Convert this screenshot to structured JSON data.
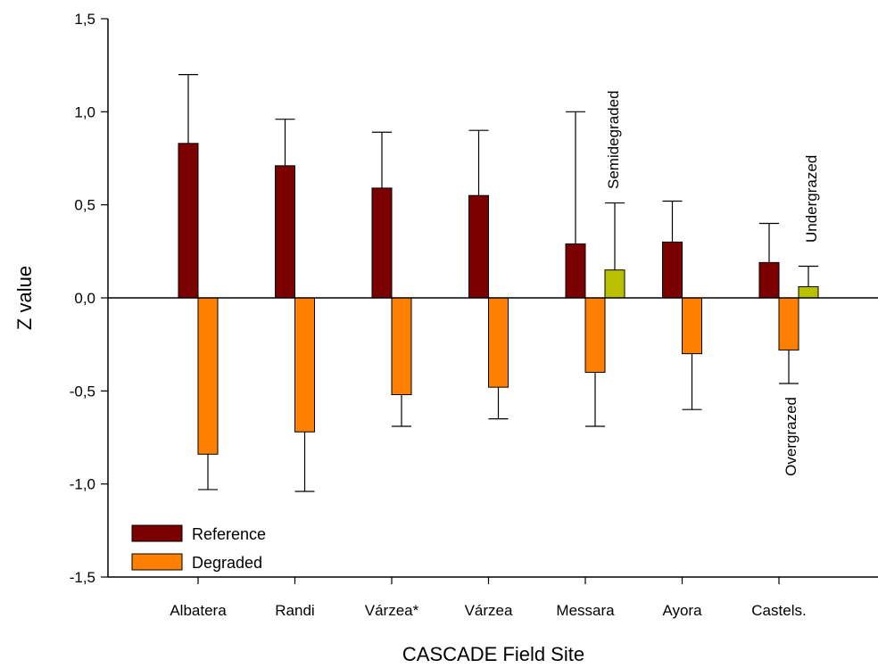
{
  "chart_data": {
    "type": "bar",
    "xlabel": "CASCADE Field Site",
    "ylabel": "Z value",
    "ylim": [
      -1.5,
      1.5
    ],
    "yticks": [
      "-1,5",
      "-1,0",
      "-0,5",
      "0,0",
      "0,5",
      "1,0",
      "1,5"
    ],
    "ytick_values": [
      -1.5,
      -1.0,
      -0.5,
      0.0,
      0.5,
      1.0,
      1.5
    ],
    "categories": [
      "Albatera",
      "Randi",
      "Várzea*",
      "Várzea",
      "Messara",
      "Ayora",
      "Castels."
    ],
    "series": [
      {
        "name": "Reference",
        "color": "#7b0000",
        "values": [
          0.83,
          0.71,
          0.59,
          0.55,
          0.29,
          0.3,
          0.19
        ],
        "errors": [
          0.37,
          0.25,
          0.3,
          0.35,
          0.71,
          0.22,
          0.21
        ]
      },
      {
        "name": "Degraded",
        "color": "#ff8000",
        "values": [
          -0.84,
          -0.72,
          -0.52,
          -0.48,
          -0.4,
          -0.3,
          -0.28
        ],
        "errors": [
          0.19,
          0.32,
          0.17,
          0.17,
          0.29,
          0.3,
          0.18
        ]
      }
    ],
    "extra_bars": [
      {
        "category": "Messara",
        "label": "Semidegraded",
        "color": "#b8c000",
        "value": 0.15,
        "error": 0.36
      },
      {
        "category": "Castels.",
        "label": "Undergrazed",
        "color": "#b8c000",
        "value": 0.06,
        "error": 0.11
      }
    ],
    "annotations": [
      "Semidegraded",
      "Undergrazed",
      "Overgrazed"
    ],
    "legend": {
      "placement": "bottom-left",
      "entries": [
        "Reference",
        "Degraded"
      ]
    },
    "grid": false
  }
}
